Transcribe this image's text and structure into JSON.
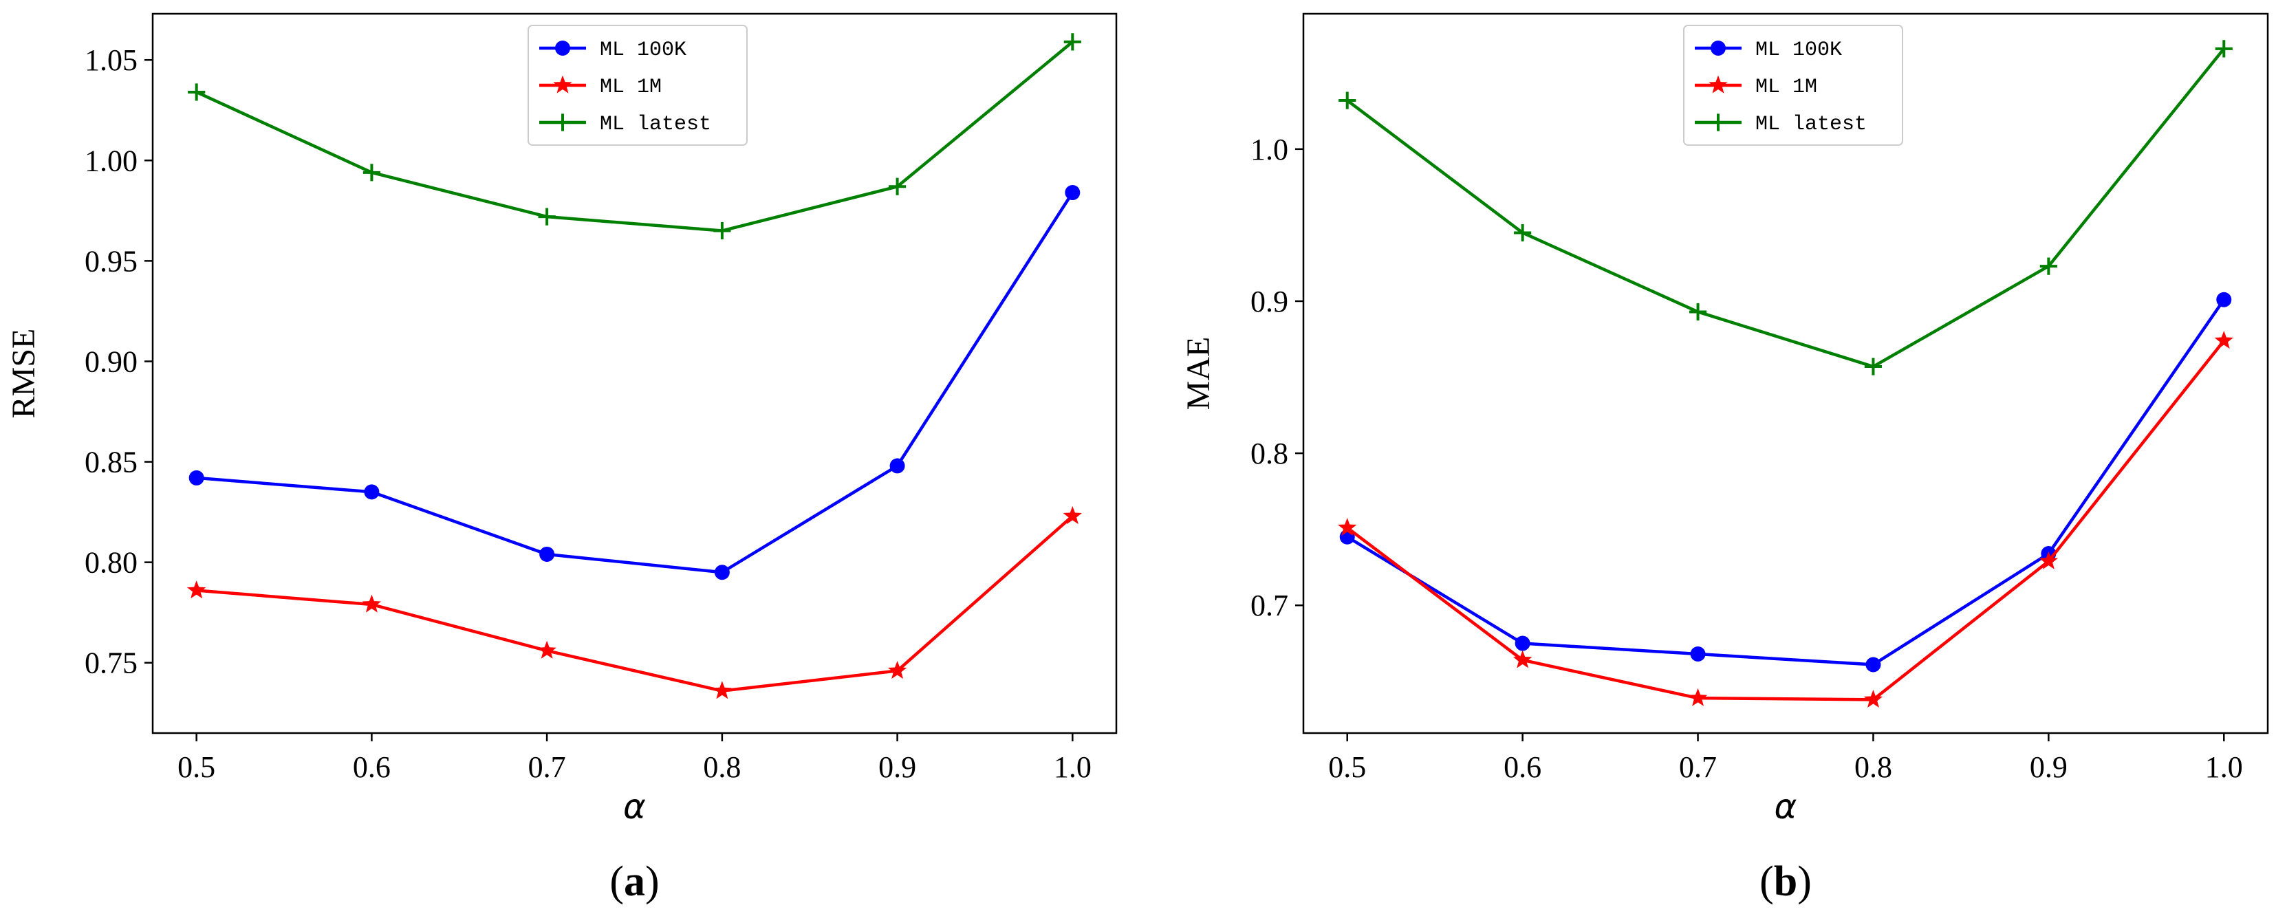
{
  "chart_data": [
    {
      "type": "line",
      "panel_label": "(a)",
      "panel_label_parts": {
        "open": "(",
        "letter": "a",
        "close": ")"
      },
      "xlabel": "α",
      "ylabel": "RMSE",
      "x": [
        0.5,
        0.6,
        0.7,
        0.8,
        0.9,
        1.0
      ],
      "x_tick_labels": [
        "0.5",
        "0.6",
        "0.7",
        "0.8",
        "0.9",
        "1.0"
      ],
      "xlim": [
        0.475,
        1.025
      ],
      "ylim": [
        0.715,
        1.073
      ],
      "y_ticks": [
        0.75,
        0.8,
        0.85,
        0.9,
        0.95,
        1.0,
        1.05
      ],
      "y_tick_labels": [
        "0.75",
        "0.80",
        "0.85",
        "0.90",
        "0.95",
        "1.00",
        "1.05"
      ],
      "legend_position": "top-center",
      "series": [
        {
          "name": "ML 100K",
          "color": "#0000ff",
          "marker": "circle",
          "values": [
            0.842,
            0.835,
            0.804,
            0.795,
            0.848,
            0.984
          ]
        },
        {
          "name": "ML 1M",
          "color": "#ff0000",
          "marker": "star",
          "values": [
            0.786,
            0.779,
            0.756,
            0.736,
            0.746,
            0.823
          ]
        },
        {
          "name": "ML latest",
          "color": "#008000",
          "marker": "plus",
          "values": [
            1.034,
            0.994,
            0.972,
            0.965,
            0.987,
            1.059
          ]
        }
      ]
    },
    {
      "type": "line",
      "panel_label": "(b)",
      "panel_label_parts": {
        "open": "(",
        "letter": "b",
        "close": ")"
      },
      "xlabel": "α",
      "ylabel": "MAE",
      "x": [
        0.5,
        0.6,
        0.7,
        0.8,
        0.9,
        1.0
      ],
      "x_tick_labels": [
        "0.5",
        "0.6",
        "0.7",
        "0.8",
        "0.9",
        "1.0"
      ],
      "xlim": [
        0.475,
        1.025
      ],
      "ylim": [
        0.616,
        1.089
      ],
      "y_ticks": [
        0.7,
        0.8,
        0.9,
        1.0
      ],
      "y_tick_labels": [
        "0.7",
        "0.8",
        "0.9",
        "1.0"
      ],
      "legend_position": "top-center",
      "series": [
        {
          "name": "ML 100K",
          "color": "#0000ff",
          "marker": "circle",
          "values": [
            0.745,
            0.675,
            0.668,
            0.661,
            0.734,
            0.901
          ]
        },
        {
          "name": "ML 1M",
          "color": "#ff0000",
          "marker": "star",
          "values": [
            0.751,
            0.664,
            0.639,
            0.638,
            0.729,
            0.874
          ]
        },
        {
          "name": "ML latest",
          "color": "#008000",
          "marker": "plus",
          "values": [
            1.032,
            0.945,
            0.893,
            0.857,
            0.923,
            1.066
          ]
        }
      ]
    }
  ]
}
